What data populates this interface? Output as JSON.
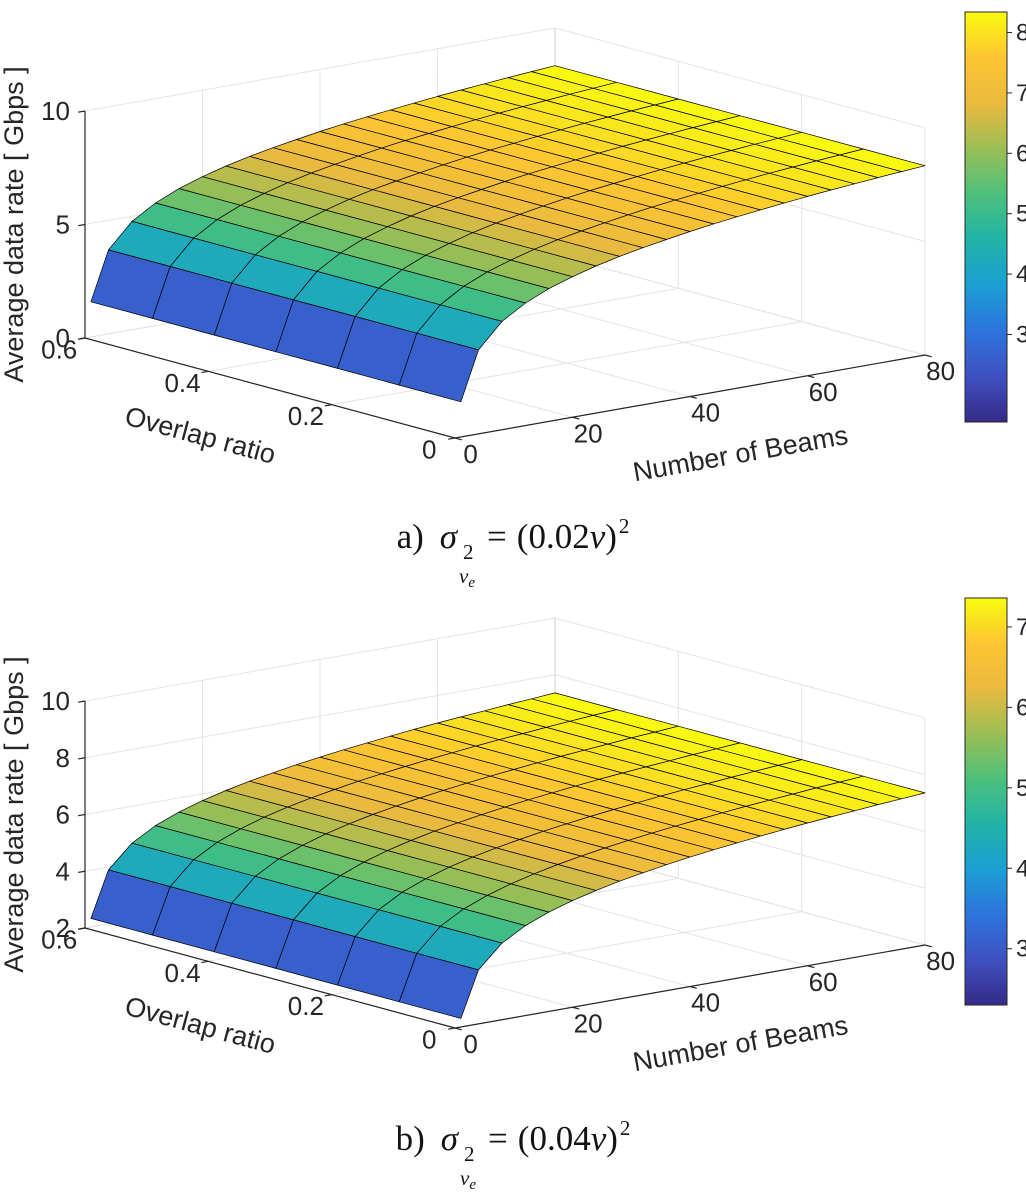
{
  "figure": {
    "background": "#ffffff",
    "axis_color": "#262626",
    "grid_color": "#e4e4e4",
    "mesh_edge_color": "#000000"
  },
  "captions": [
    {
      "label": "a)",
      "sigma": "σ",
      "sup": "2",
      "sub_main": "v",
      "sub_sub": "e",
      "equals": "=",
      "open": "(",
      "coeff": "0.02",
      "variable": "v",
      "close": ")",
      "exponent": "2"
    },
    {
      "label": "b)",
      "sigma": "σ",
      "sup": "2",
      "sub_main": "v",
      "sub_sub": "e",
      "equals": "=",
      "open": "(",
      "coeff": "0.04",
      "variable": "v",
      "close": ")",
      "exponent": "2"
    }
  ],
  "chart_data": [
    {
      "type": "surface",
      "plot_label": "a)",
      "xlabel": "Number of Beams",
      "ylabel": "Overlap ratio",
      "zlabel": "Average data rate [ Gbps ]",
      "xlim": [
        0,
        80
      ],
      "xticks": [
        0,
        20,
        40,
        60,
        80
      ],
      "ylim": [
        0,
        0.6
      ],
      "yticks": [
        0,
        0.2,
        0.4,
        0.6
      ],
      "zlim": [
        0,
        10
      ],
      "zticks": [
        0,
        5,
        10
      ],
      "x_beams": [
        1,
        4,
        8,
        12,
        16,
        20,
        24,
        28,
        32,
        36,
        40,
        44,
        48,
        52,
        56,
        60,
        64,
        68,
        72,
        76,
        80
      ],
      "y_overlap": [
        0,
        0.1,
        0.2,
        0.3,
        0.4,
        0.5,
        0.6
      ],
      "z_rate_gbps": [
        1.55,
        3.7,
        4.77,
        5.4,
        5.85,
        6.19,
        6.48,
        6.72,
        6.92,
        7.1,
        7.27,
        7.42,
        7.55,
        7.67,
        7.79,
        7.9,
        8.0,
        8.09,
        8.18,
        8.26,
        8.34
      ],
      "z_constant_over_overlap": true,
      "caxis": [
        1.55,
        8.34
      ],
      "colorbar_ticks": [
        3,
        4,
        5,
        6,
        7,
        8
      ],
      "colormap": "parula",
      "colormap_stops": [
        "#352a87",
        "#3f51c1",
        "#2d74dc",
        "#1b9fd4",
        "#21b3a7",
        "#4dc17b",
        "#9bbe54",
        "#eaba3f",
        "#fdc532",
        "#f9fb0e"
      ]
    },
    {
      "type": "surface",
      "plot_label": "b)",
      "xlabel": "Number of Beams",
      "ylabel": "Overlap ratio",
      "zlabel": "Average data rate [ Gbps ]",
      "xlim": [
        0,
        80
      ],
      "xticks": [
        0,
        20,
        40,
        60,
        80
      ],
      "ylim": [
        0,
        0.6
      ],
      "yticks": [
        0,
        0.2,
        0.4,
        0.6
      ],
      "zlim": [
        2,
        10
      ],
      "zticks": [
        2,
        4,
        6,
        8,
        10
      ],
      "x_beams": [
        1,
        4,
        8,
        12,
        16,
        20,
        24,
        28,
        32,
        36,
        40,
        44,
        48,
        52,
        56,
        60,
        64,
        68,
        72,
        76,
        80
      ],
      "y_overlap": [
        0,
        0.1,
        0.2,
        0.3,
        0.4,
        0.5,
        0.6
      ],
      "z_rate_gbps": [
        2.3,
        3.9,
        4.7,
        5.17,
        5.5,
        5.76,
        5.97,
        6.15,
        6.3,
        6.44,
        6.56,
        6.67,
        6.77,
        6.86,
        6.95,
        7.03,
        7.1,
        7.17,
        7.24,
        7.3,
        7.36
      ],
      "z_constant_over_overlap": true,
      "caxis": [
        2.3,
        7.36
      ],
      "colorbar_ticks": [
        3,
        4,
        5,
        6,
        7
      ],
      "colormap": "parula",
      "colormap_stops": [
        "#352a87",
        "#3f51c1",
        "#2d74dc",
        "#1b9fd4",
        "#21b3a7",
        "#4dc17b",
        "#9bbe54",
        "#eaba3f",
        "#fdc532",
        "#f9fb0e"
      ]
    }
  ]
}
